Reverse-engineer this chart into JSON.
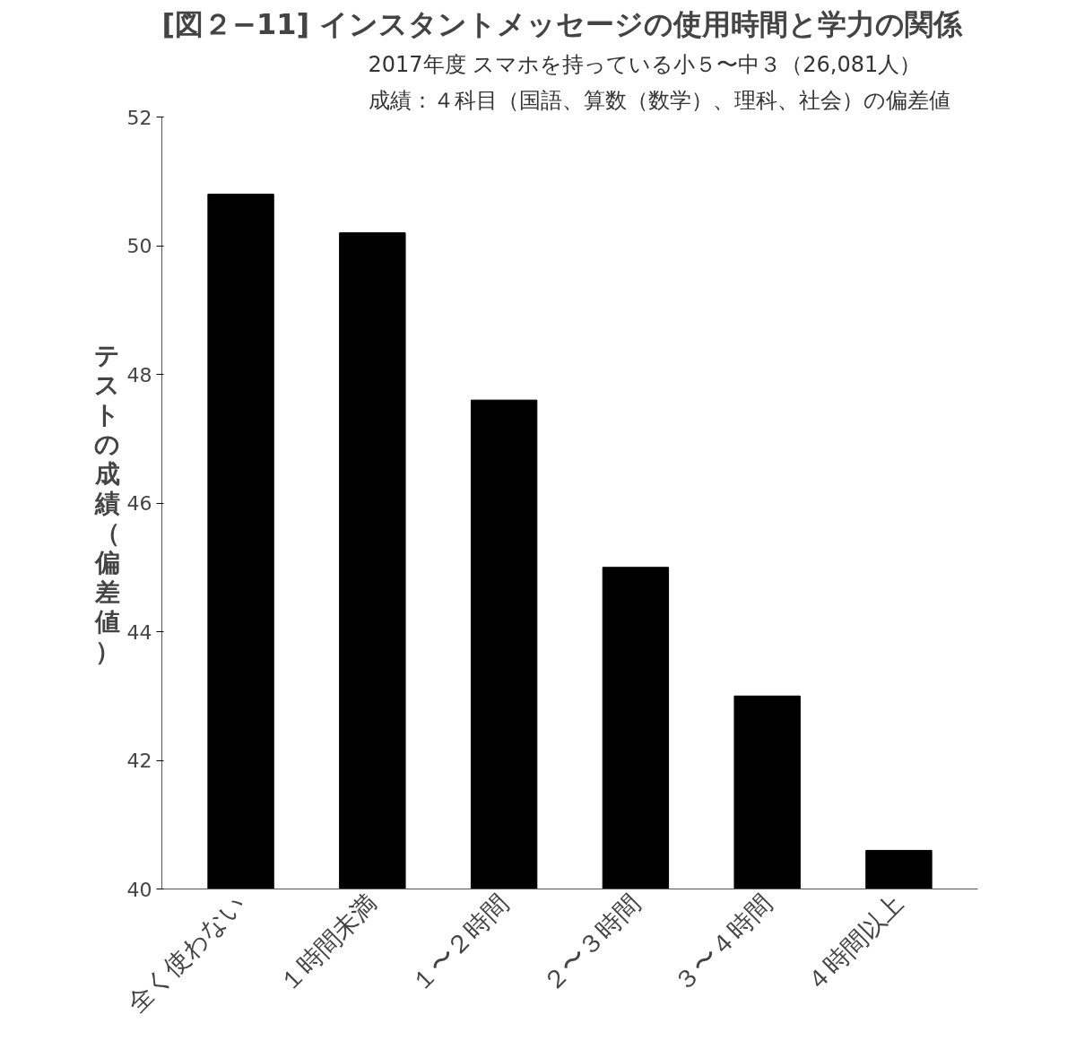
{
  "chart_data": {
    "type": "bar",
    "title": "[図２−11] インスタントメッセージの使用時間と学力の関係",
    "subtitle": [
      "2017年度 スマホを持っている小５〜中３（26,081人）",
      "成績：４科目（国語、算数（数学）、理科、社会）の偏差値"
    ],
    "ylabel": "テストの成績（偏差値）",
    "categories": [
      "全く使わない",
      "１時間未満",
      "１〜２時間",
      "２〜３時間",
      "３〜４時間",
      "４時間以上"
    ],
    "values": [
      50.8,
      50.2,
      47.6,
      45.0,
      43.0,
      40.6
    ],
    "color": "#000000",
    "ylim": [
      40,
      52
    ],
    "yticks": [
      40,
      42,
      44,
      46,
      48,
      50,
      52
    ],
    "grid": false
  }
}
